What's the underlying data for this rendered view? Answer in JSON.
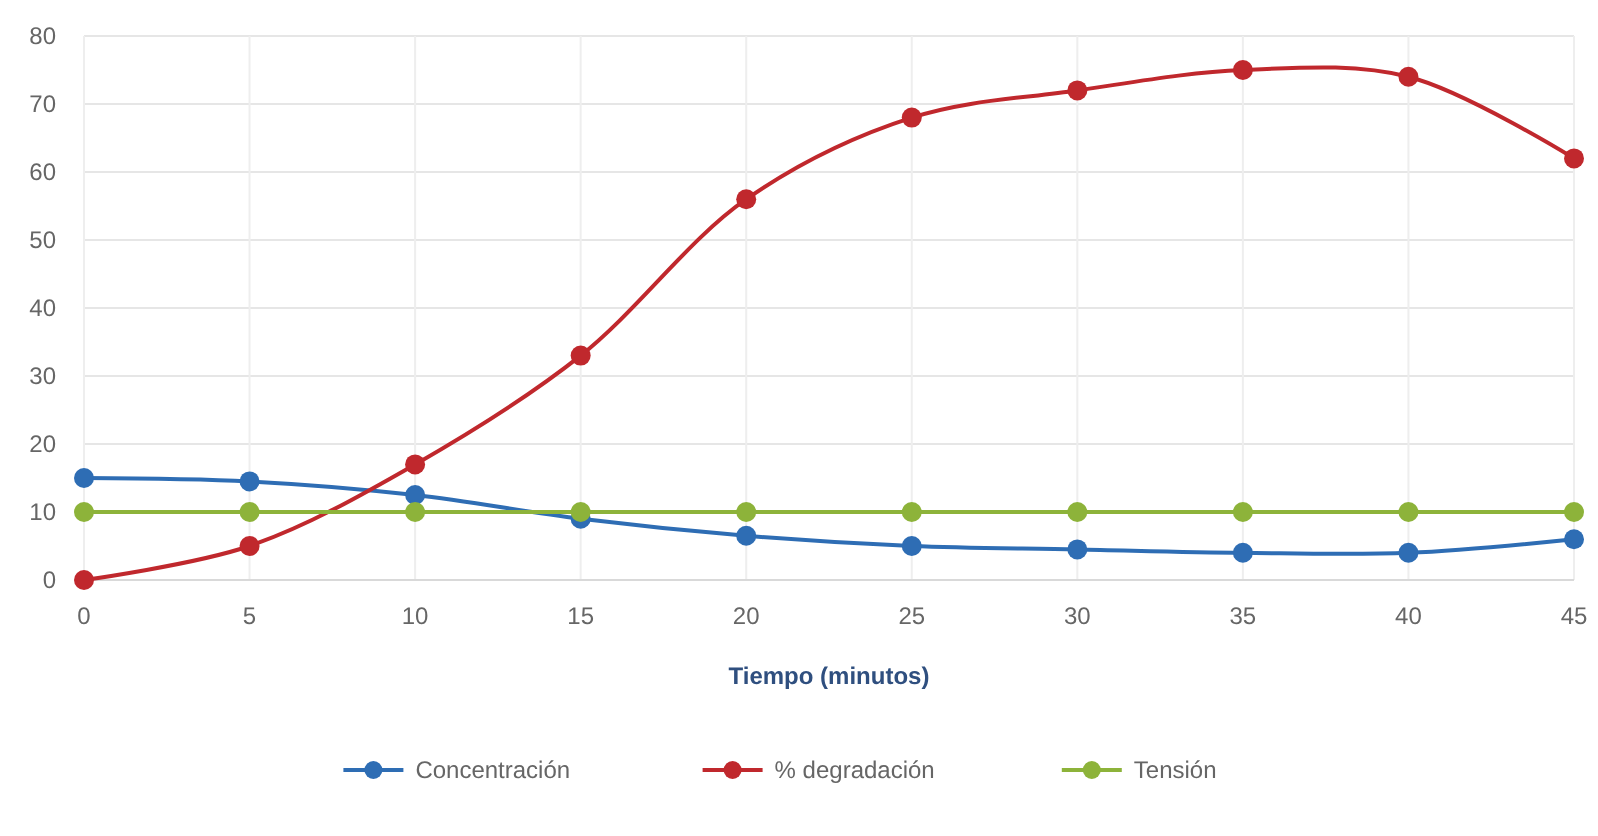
{
  "chart_data": {
    "type": "line",
    "xlabel": "Tiempo (minutos)",
    "x": [
      0,
      5,
      10,
      15,
      20,
      25,
      30,
      35,
      40,
      45
    ],
    "series": [
      {
        "name": "Concentración",
        "color": "#2e6db4",
        "values": [
          15,
          14.5,
          12.5,
          9,
          6.5,
          5,
          4.5,
          4,
          4,
          6
        ]
      },
      {
        "name": "% degradación",
        "color": "#c0282d",
        "values": [
          0,
          5,
          17,
          33,
          56,
          68,
          72,
          75,
          74,
          62
        ]
      },
      {
        "name": "Tensión",
        "color": "#8db33a",
        "values": [
          10,
          10,
          10,
          10,
          10,
          10,
          10,
          10,
          10,
          10
        ]
      }
    ],
    "xlim": [
      0,
      45
    ],
    "xticks": [
      0,
      5,
      10,
      15,
      20,
      25,
      30,
      35,
      40,
      45
    ],
    "ylim": [
      0,
      80
    ],
    "yticks": [
      0,
      10,
      20,
      30,
      40,
      50,
      60,
      70,
      80
    ],
    "grid": true,
    "legend": "bottom",
    "marker": "circle",
    "line_style": "solid"
  }
}
